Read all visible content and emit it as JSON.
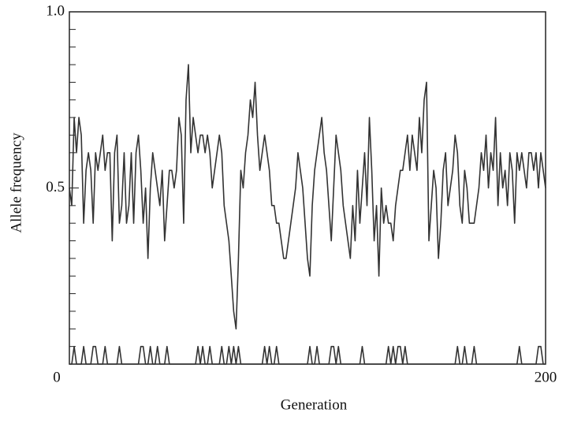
{
  "chart_data": {
    "type": "line",
    "x_label": "Generation",
    "y_label": "Allele frequency",
    "xlim": [
      0,
      200
    ],
    "xticks": [
      0,
      200
    ],
    "ylim": [
      0,
      1
    ],
    "yticks": [
      {
        "value": 0.5,
        "label": "0.5"
      },
      {
        "value": 1,
        "label": "1.0"
      }
    ],
    "minor_yticks": [
      0.05,
      0.1,
      0.15,
      0.2,
      0.25,
      0.3,
      0.35,
      0.4,
      0.45,
      0.55,
      0.6,
      0.65,
      0.7,
      0.75,
      0.8,
      0.85,
      0.9,
      0.95
    ],
    "series": [
      {
        "color": "#333333",
        "values": [
          0.5,
          0.45,
          0.7,
          0.6,
          0.7,
          0.65,
          0.4,
          0.55,
          0.6,
          0.55,
          0.4,
          0.6,
          0.55,
          0.6,
          0.65,
          0.55,
          0.6,
          0.6,
          0.35,
          0.6,
          0.65,
          0.4,
          0.45,
          0.6,
          0.4,
          0.45,
          0.6,
          0.4,
          0.6,
          0.65,
          0.55,
          0.4,
          0.5,
          0.3,
          0.5,
          0.6,
          0.55,
          0.5,
          0.45,
          0.55,
          0.35,
          0.45,
          0.55,
          0.55,
          0.5,
          0.55,
          0.7,
          0.65,
          0.4,
          0.75,
          0.85,
          0.6,
          0.7,
          0.65,
          0.6,
          0.65,
          0.65,
          0.6,
          0.65,
          0.6,
          0.5,
          0.55,
          0.6,
          0.65,
          0.6,
          0.45,
          0.4,
          0.35,
          0.25,
          0.15,
          0.1,
          0.3,
          0.55,
          0.5,
          0.6,
          0.65,
          0.75,
          0.7,
          0.8,
          0.65,
          0.55,
          0.6,
          0.65,
          0.6,
          0.55,
          0.45,
          0.45,
          0.4,
          0.4,
          0.35,
          0.3,
          0.3,
          0.35,
          0.4,
          0.45,
          0.5,
          0.6,
          0.55,
          0.5,
          0.4,
          0.3,
          0.25,
          0.45,
          0.55,
          0.6,
          0.65,
          0.7,
          0.6,
          0.55,
          0.45,
          0.35,
          0.5,
          0.65,
          0.6,
          0.55,
          0.45,
          0.4,
          0.35,
          0.3,
          0.45,
          0.35,
          0.55,
          0.4,
          0.5,
          0.6,
          0.45,
          0.7,
          0.55,
          0.35,
          0.45,
          0.25,
          0.5,
          0.4,
          0.45,
          0.4,
          0.4,
          0.35,
          0.45,
          0.5,
          0.55,
          0.55,
          0.6,
          0.65,
          0.55,
          0.65,
          0.6,
          0.55,
          0.7,
          0.6,
          0.75,
          0.8,
          0.35,
          0.45,
          0.55,
          0.5,
          0.3,
          0.4,
          0.55,
          0.6,
          0.45,
          0.5,
          0.55,
          0.65,
          0.6,
          0.45,
          0.4,
          0.55,
          0.5,
          0.4,
          0.4,
          0.4,
          0.45,
          0.5,
          0.6,
          0.55,
          0.65,
          0.5,
          0.6,
          0.55,
          0.7,
          0.45,
          0.6,
          0.5,
          0.55,
          0.45,
          0.6,
          0.55,
          0.4,
          0.6,
          0.55,
          0.6,
          0.55,
          0.5,
          0.6,
          0.6,
          0.55,
          0.6,
          0.5,
          0.6,
          0.55,
          0.5
        ]
      },
      {
        "color": "#333333",
        "values": [
          0,
          0,
          0.05,
          0,
          0,
          0,
          0.05,
          0,
          0,
          0,
          0.05,
          0.05,
          0,
          0,
          0,
          0.05,
          0,
          0,
          0,
          0,
          0,
          0.05,
          0,
          0,
          0,
          0,
          0,
          0,
          0,
          0,
          0.05,
          0.05,
          0,
          0,
          0.05,
          0,
          0,
          0.05,
          0,
          0,
          0,
          0.05,
          0,
          0,
          0,
          0,
          0,
          0,
          0,
          0,
          0,
          0,
          0,
          0,
          0.05,
          0,
          0.05,
          0,
          0,
          0.05,
          0,
          0,
          0,
          0,
          0.05,
          0,
          0,
          0.05,
          0,
          0.05,
          0,
          0.05,
          0,
          0,
          0,
          0,
          0,
          0,
          0,
          0,
          0,
          0,
          0.05,
          0,
          0.05,
          0,
          0,
          0.05,
          0,
          0,
          0,
          0,
          0,
          0,
          0,
          0,
          0,
          0,
          0,
          0,
          0,
          0.05,
          0,
          0,
          0.05,
          0,
          0,
          0,
          0,
          0,
          0.05,
          0.05,
          0,
          0.05,
          0,
          0,
          0,
          0,
          0,
          0,
          0,
          0,
          0,
          0.05,
          0,
          0,
          0,
          0,
          0,
          0,
          0,
          0,
          0,
          0,
          0.05,
          0,
          0.05,
          0,
          0.05,
          0.05,
          0,
          0.05,
          0,
          0,
          0,
          0,
          0,
          0,
          0,
          0,
          0,
          0,
          0,
          0,
          0,
          0,
          0,
          0,
          0,
          0,
          0,
          0,
          0,
          0.05,
          0,
          0,
          0.05,
          0,
          0,
          0,
          0.05,
          0,
          0,
          0,
          0,
          0,
          0,
          0,
          0,
          0,
          0,
          0,
          0,
          0,
          0,
          0,
          0,
          0,
          0,
          0.05,
          0,
          0,
          0,
          0,
          0,
          0,
          0,
          0.05,
          0.05,
          0,
          0
        ]
      }
    ]
  }
}
